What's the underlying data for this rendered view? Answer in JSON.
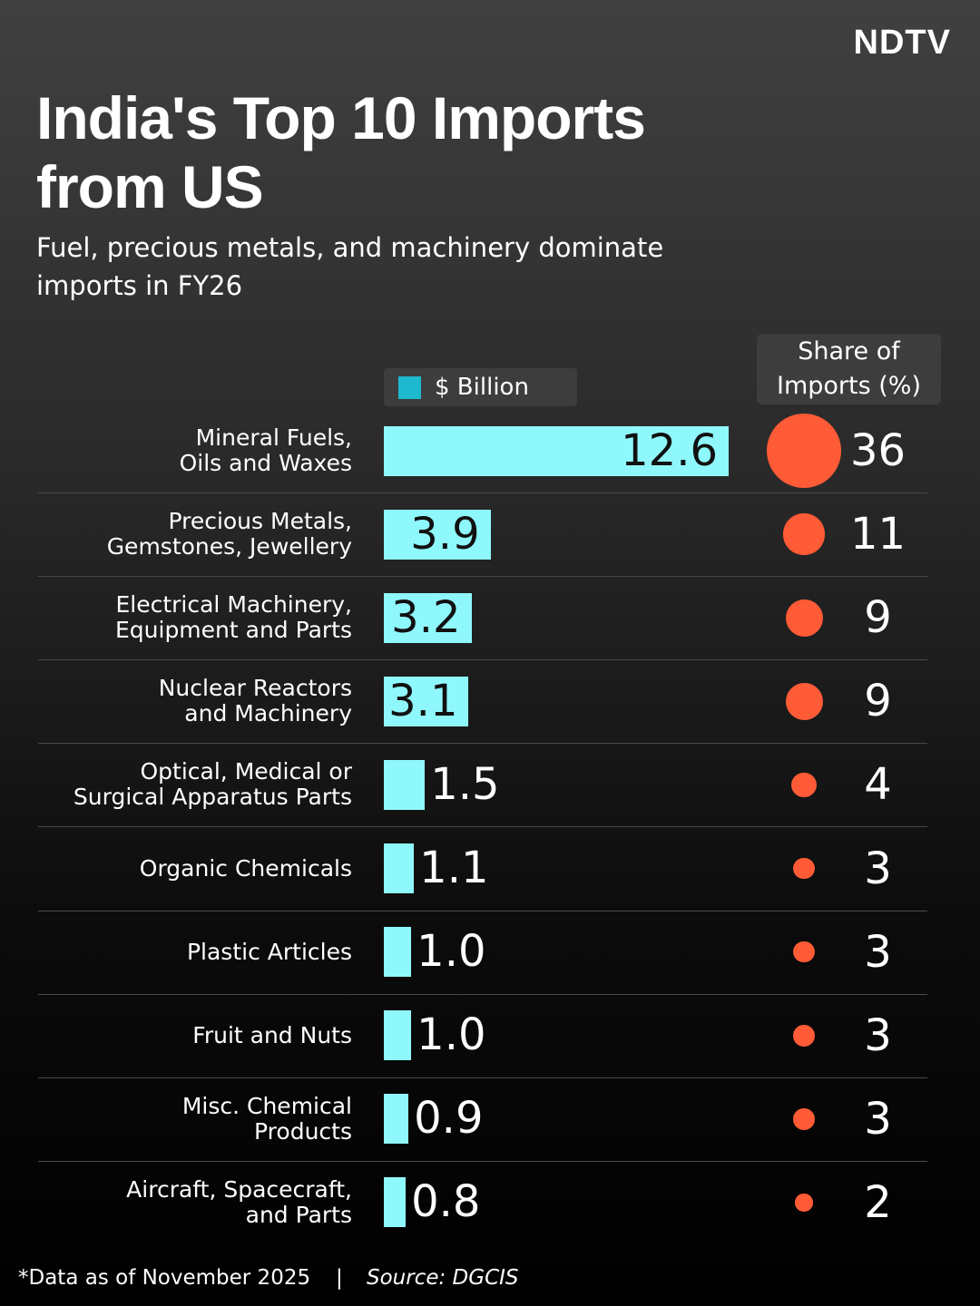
{
  "chart_data": {
    "type": "bar",
    "brand": "NDTV",
    "title": "India's Top 10 Imports from US",
    "subtitle": "Fuel, precious metals, and machinery dominate imports in FY26",
    "categories": [
      "Mineral Fuels,\nOils and Waxes",
      "Precious Metals,\nGemstones, Jewellery",
      "Electrical Machinery,\nEquipment and Parts",
      "Nuclear Reactors\nand Machinery",
      "Optical, Medical or\nSurgical Apparatus Parts",
      "Organic Chemicals",
      "Plastic Articles",
      "Fruit and Nuts",
      "Misc. Chemical\nProducts",
      "Aircraft, Spacecraft,\nand Parts"
    ],
    "series": [
      {
        "name": "$ Billion",
        "color": "#8ff8fc",
        "legend_color": "#1cb9cf",
        "values": [
          12.6,
          3.9,
          3.2,
          3.1,
          1.5,
          1.1,
          1.0,
          1.0,
          0.9,
          0.8
        ],
        "value_labels": [
          "12.6",
          "3.9",
          "3.2",
          "3.1",
          "1.5",
          "1.1",
          "1.0",
          "1.0",
          "0.9",
          "0.8"
        ]
      },
      {
        "name": "Share of Imports (%)",
        "color": "#ff5b36",
        "values": [
          36,
          11,
          9,
          9,
          4,
          3,
          3,
          3,
          3,
          2
        ]
      }
    ],
    "footnote": "*Data as of November 2025",
    "source": "Source: DGCIS"
  }
}
